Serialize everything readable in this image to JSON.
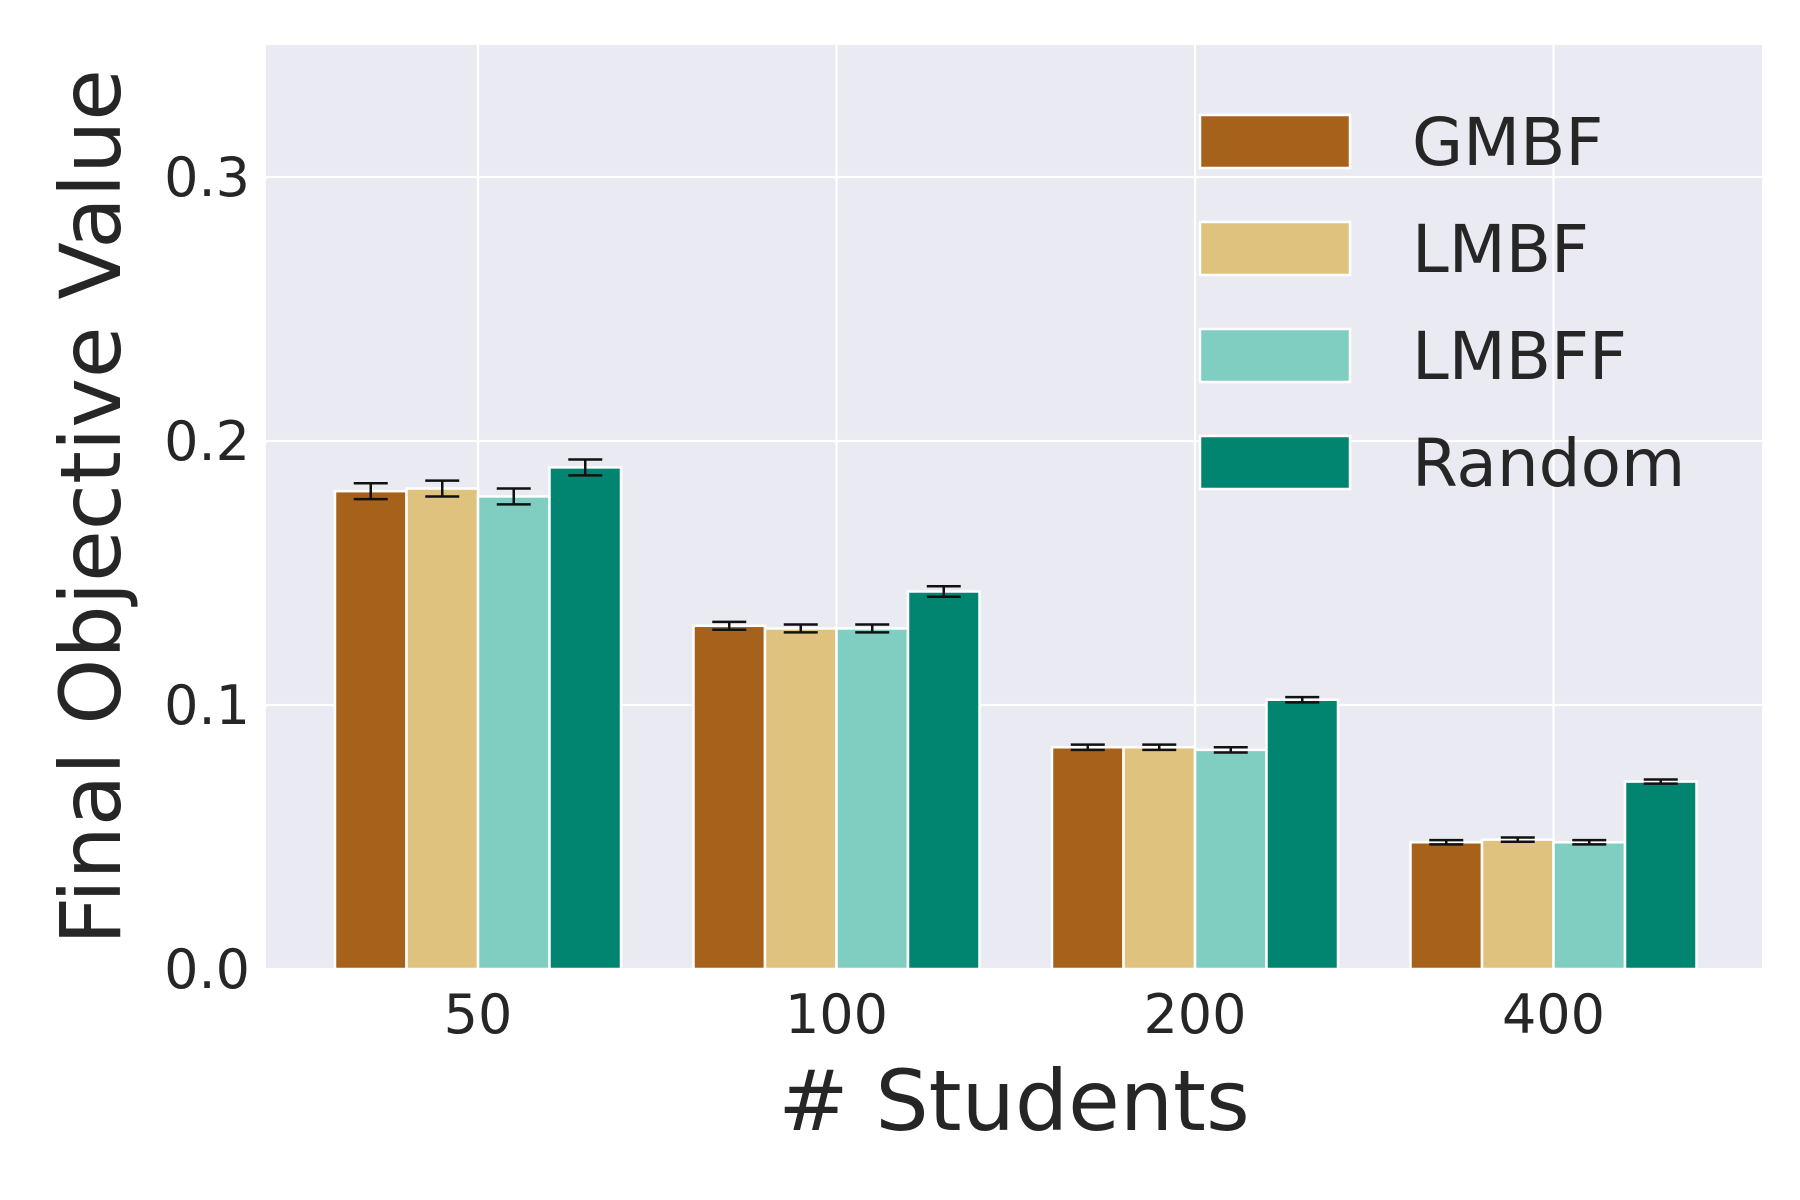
{
  "chart_data": {
    "type": "bar",
    "title": "",
    "xlabel": "# Students",
    "ylabel": "Final Objective Value",
    "categories": [
      "50",
      "100",
      "200",
      "400"
    ],
    "ylim": [
      0,
      0.35
    ],
    "yticks": [
      "0.0",
      "0.1",
      "0.2",
      "0.3"
    ],
    "grid": true,
    "legend_position": "top-right",
    "series": [
      {
        "name": "GMBF",
        "color": "#a6611a",
        "values": [
          0.181,
          0.13,
          0.084,
          0.048
        ],
        "errors": [
          0.003,
          0.0015,
          0.001,
          0.0008
        ]
      },
      {
        "name": "LMBF",
        "color": "#dfc27d",
        "values": [
          0.182,
          0.129,
          0.084,
          0.049
        ],
        "errors": [
          0.003,
          0.0015,
          0.001,
          0.0008
        ]
      },
      {
        "name": "LMBFF",
        "color": "#80cdc1",
        "values": [
          0.179,
          0.129,
          0.083,
          0.048
        ],
        "errors": [
          0.003,
          0.0015,
          0.001,
          0.0008
        ]
      },
      {
        "name": "Random",
        "color": "#018571",
        "values": [
          0.19,
          0.143,
          0.102,
          0.071
        ],
        "errors": [
          0.003,
          0.002,
          0.001,
          0.0008
        ]
      }
    ]
  }
}
